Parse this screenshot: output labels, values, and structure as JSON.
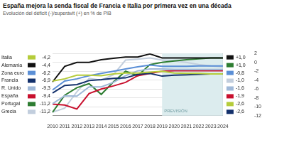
{
  "chart_data": {
    "type": "line",
    "title": "España mejora la senda fiscal de Francia e Italia por primera vez en una década",
    "subtitle": "Evolución del déficit (-)/superávit (+) en % de PIB",
    "categories": [
      "2010",
      "2011",
      "2012",
      "2013",
      "2014",
      "2015",
      "2016",
      "2017",
      "2018",
      "2019",
      "2020",
      "2021",
      "2022",
      "2023",
      "2024"
    ],
    "series": [
      {
        "name": "Italia",
        "color": "#b5cc3a",
        "values": [
          -4.2,
          -3.7,
          -2.9,
          -2.9,
          -3.0,
          -2.6,
          -2.4,
          -2.4,
          -2.2,
          -2.0,
          -2.4,
          -2.5,
          -2.5,
          -2.6,
          -2.6
        ],
        "value_labels": [
          "-4,2",
          null,
          null,
          null,
          null,
          null,
          null,
          null,
          null,
          null,
          null,
          null,
          null,
          null,
          "-2,6"
        ]
      },
      {
        "name": "Alemania",
        "color": "#111111",
        "values": [
          -4.4,
          -0.9,
          0.0,
          0.0,
          0.6,
          0.9,
          1.2,
          1.2,
          1.9,
          1.0,
          1.0,
          1.0,
          1.0,
          1.0,
          1.0
        ],
        "value_labels": [
          "-4,4",
          null,
          null,
          null,
          null,
          null,
          null,
          null,
          null,
          null,
          null,
          null,
          null,
          null,
          "+1,0"
        ]
      },
      {
        "name": "Zona euro",
        "color": "#5b8fd6",
        "values": [
          -6.2,
          -4.2,
          -3.7,
          -3.0,
          -2.5,
          -2.0,
          -1.5,
          -1.0,
          -0.6,
          -0.9,
          -0.9,
          -0.9,
          -0.8,
          -0.8,
          -0.8
        ],
        "value_labels": [
          "-6,2",
          null,
          null,
          null,
          null,
          null,
          null,
          null,
          null,
          null,
          null,
          null,
          null,
          null,
          "-0,8"
        ]
      },
      {
        "name": "Francia",
        "color": "#13306b",
        "values": [
          -6.9,
          -5.2,
          -5.0,
          -4.1,
          -3.9,
          -3.6,
          -3.5,
          -2.7,
          -2.5,
          -3.1,
          -2.9,
          -2.8,
          -2.7,
          -2.6,
          -2.6
        ],
        "value_labels": [
          "-6,9",
          null,
          null,
          null,
          null,
          null,
          null,
          null,
          null,
          null,
          null,
          null,
          null,
          null,
          "-2,6"
        ]
      },
      {
        "name": "R. Unido",
        "color": "#9fb8d8",
        "values": [
          -9.3,
          -7.5,
          -7.6,
          -5.5,
          -5.5,
          -4.5,
          -3.0,
          -1.9,
          -1.5,
          -1.5,
          -1.6,
          -1.6,
          -1.6,
          -1.6,
          -1.6
        ],
        "value_labels": [
          "-9,3",
          null,
          null,
          null,
          null,
          null,
          null,
          null,
          null,
          null,
          null,
          null,
          null,
          null,
          "-1,6"
        ]
      },
      {
        "name": "España",
        "color": "#c8102e",
        "values": [
          -9.4,
          -9.6,
          -10.5,
          -7.0,
          -6.0,
          -5.3,
          -4.5,
          -3.0,
          -2.5,
          -2.0,
          -1.9,
          -1.9,
          -1.9,
          -1.9,
          -1.9
        ],
        "value_labels": [
          "-9,4",
          null,
          null,
          null,
          null,
          null,
          null,
          null,
          null,
          null,
          null,
          null,
          null,
          null,
          "-1,9"
        ]
      },
      {
        "name": "Portugal",
        "color": "#2e7d32",
        "values": [
          -11.2,
          -7.4,
          -5.7,
          -4.8,
          -7.2,
          -4.4,
          -2.0,
          -3.0,
          -0.5,
          0.0,
          0.3,
          0.6,
          0.8,
          1.0,
          1.0
        ],
        "value_labels": [
          "-11,2",
          null,
          null,
          null,
          null,
          null,
          null,
          null,
          null,
          null,
          null,
          null,
          null,
          null,
          "+1,0"
        ]
      },
      {
        "name": "Grecia",
        "color": "#c2cedd",
        "values": [
          -11.2,
          -10.3,
          -6.6,
          -3.6,
          -4.0,
          -2.8,
          0.5,
          0.7,
          1.0,
          0.5,
          0.3,
          0.0,
          -0.5,
          -0.8,
          -1.0
        ],
        "value_labels": [
          "-11,2",
          null,
          null,
          null,
          null,
          null,
          null,
          null,
          null,
          null,
          null,
          null,
          null,
          null,
          "-1,0"
        ]
      }
    ],
    "ylim": [
      -12,
      2
    ],
    "yticks": [
      -12,
      -10,
      -8,
      -6,
      -4,
      -2,
      0,
      2
    ],
    "grid": true,
    "legend": "left",
    "annotations": [
      {
        "text": "PREVISIÓN",
        "x_from": "2019",
        "x_to": "2024"
      }
    ]
  }
}
